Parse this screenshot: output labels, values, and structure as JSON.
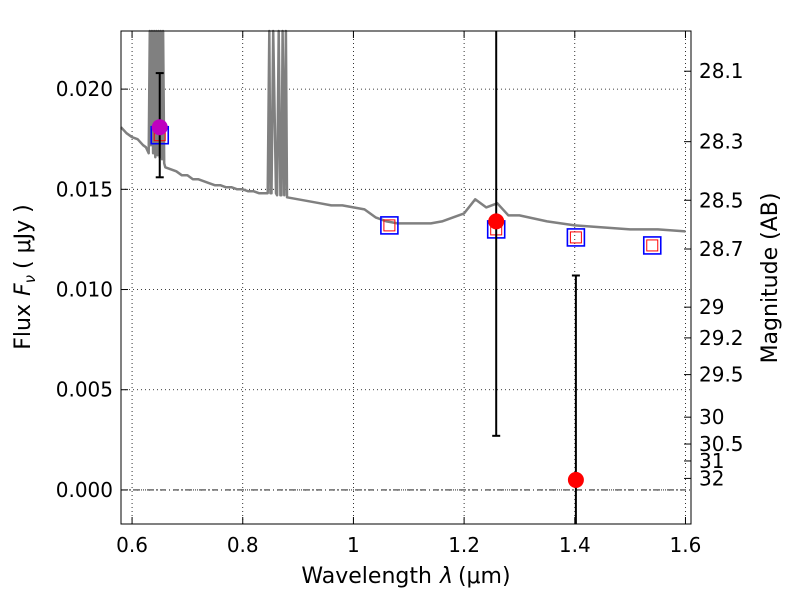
{
  "chart_data": {
    "type": "scatter",
    "xlabel_text": "Wavelength",
    "xlabel_symbol": "λ",
    "xlabel_unit": "(μm)",
    "ylabel_text": "Flux",
    "ylabel_symbol": "F",
    "ylabel_subscript": "ν",
    "ylabel_unit": "( μJy )",
    "y2label": "Magnitude (AB)",
    "xlim": [
      0.58,
      1.61
    ],
    "ylim": [
      -0.0017,
      0.0229
    ],
    "xticks": [
      0.6,
      0.8,
      1.0,
      1.2,
      1.4,
      1.6
    ],
    "xtick_labels": [
      "0.6",
      "0.8",
      "1",
      "1.2",
      "1.4",
      "1.6"
    ],
    "yticks": [
      0.0,
      0.005,
      0.01,
      0.015,
      0.02
    ],
    "ytick_labels": [
      "0.000",
      "0.005",
      "0.010",
      "0.015",
      "0.020"
    ],
    "y2ticks": [
      28.1,
      28.3,
      28.5,
      28.7,
      29,
      29.2,
      29.5,
      30,
      30.5,
      31,
      32
    ],
    "y2tick_labels": [
      "28.1",
      "28.3",
      "28.5",
      "28.7",
      "29",
      "29.2",
      "29.5",
      "30",
      "30.5",
      "31",
      "32"
    ],
    "grid": true,
    "colors": {
      "spectrum": "#808080",
      "model_box_outer": "#0000ff",
      "model_box_inner": "#ff0000",
      "detection": "#ff0000",
      "highlight": "#bf00bf",
      "errorbar": "#000000"
    },
    "series": [
      {
        "kind": "line",
        "x": [
          0.58,
          0.59,
          0.6,
          0.61,
          0.62,
          0.625,
          0.63,
          0.632,
          0.634,
          0.636,
          0.638,
          0.64,
          0.642,
          0.644,
          0.646,
          0.648,
          0.65,
          0.652,
          0.654,
          0.656,
          0.658,
          0.66,
          0.67,
          0.68,
          0.69,
          0.7,
          0.71,
          0.72,
          0.73,
          0.74,
          0.75,
          0.76,
          0.77,
          0.78,
          0.79,
          0.8,
          0.81,
          0.82,
          0.83,
          0.84,
          0.845,
          0.848,
          0.85,
          0.852,
          0.855,
          0.86,
          0.862,
          0.865,
          0.868,
          0.87,
          0.872,
          0.875,
          0.878,
          0.88,
          0.9,
          0.92,
          0.94,
          0.96,
          0.98,
          1.0,
          1.02,
          1.04,
          1.06,
          1.08,
          1.1,
          1.12,
          1.14,
          1.16,
          1.18,
          1.2,
          1.22,
          1.24,
          1.26,
          1.28,
          1.3,
          1.35,
          1.4,
          1.45,
          1.5,
          1.55,
          1.6
        ],
        "y": [
          0.0181,
          0.0178,
          0.0176,
          0.0175,
          0.0172,
          0.0171,
          0.0168,
          0.023,
          0.0172,
          0.023,
          0.0168,
          0.023,
          0.0166,
          0.023,
          0.0167,
          0.023,
          0.0166,
          0.023,
          0.0165,
          0.023,
          0.0163,
          0.0161,
          0.016,
          0.0159,
          0.0157,
          0.0157,
          0.0155,
          0.0155,
          0.0154,
          0.0153,
          0.0152,
          0.0152,
          0.0151,
          0.0151,
          0.015,
          0.015,
          0.0149,
          0.0149,
          0.0148,
          0.0148,
          0.0148,
          0.023,
          0.0148,
          0.0148,
          0.023,
          0.0148,
          0.0147,
          0.023,
          0.0147,
          0.0147,
          0.023,
          0.0147,
          0.023,
          0.0146,
          0.0145,
          0.0144,
          0.0143,
          0.0142,
          0.0142,
          0.0141,
          0.014,
          0.0136,
          0.0134,
          0.0133,
          0.0133,
          0.0133,
          0.0133,
          0.0134,
          0.0136,
          0.0138,
          0.0145,
          0.0141,
          0.0143,
          0.0137,
          0.0137,
          0.0134,
          0.0132,
          0.0131,
          0.013,
          0.013,
          0.0129
        ]
      },
      {
        "kind": "model-boxes",
        "x": [
          0.65,
          1.065,
          1.258,
          1.402,
          1.54
        ],
        "y": [
          0.0177,
          0.0132,
          0.013,
          0.0126,
          0.0122
        ]
      },
      {
        "kind": "measurements",
        "points": [
          {
            "x": 0.65,
            "y": 0.0181,
            "err_low": 0.0156,
            "err_high": 0.0208,
            "color": "#bf00bf"
          },
          {
            "x": 1.258,
            "y": 0.0134,
            "err_low": 0.0027,
            "err_high": 0.0229,
            "color": "#ff0000"
          },
          {
            "x": 1.402,
            "y": 0.0005,
            "err_low": -0.0017,
            "err_high": 0.0107,
            "color": "#ff0000"
          }
        ]
      }
    ]
  }
}
